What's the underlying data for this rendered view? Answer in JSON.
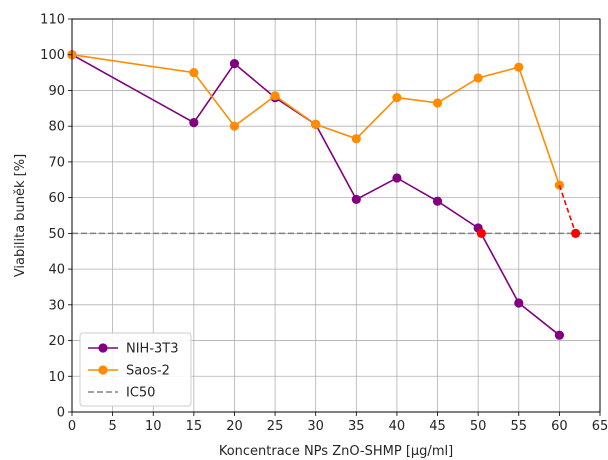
{
  "chart_data": {
    "type": "line",
    "xlabel": "Koncentrace NPs ZnO-SHMP [µg/ml]",
    "ylabel": "Viabilita buněk [%]",
    "xlim": [
      0,
      65
    ],
    "ylim": [
      0,
      110
    ],
    "xticks": [
      0,
      5,
      10,
      15,
      20,
      25,
      30,
      35,
      40,
      45,
      50,
      55,
      60,
      65
    ],
    "yticks": [
      0,
      10,
      20,
      30,
      40,
      50,
      60,
      70,
      80,
      90,
      100,
      110
    ],
    "grid": true,
    "legend_position": "lower-left",
    "series": [
      {
        "name": "NIH-3T3",
        "color": "#800080",
        "marker": "circle",
        "x": [
          0,
          15,
          20,
          25,
          30,
          35,
          40,
          45,
          50,
          55,
          60
        ],
        "y": [
          100,
          81,
          97.5,
          88,
          80.5,
          59.5,
          65.5,
          59,
          51.5,
          30.5,
          21.5
        ]
      },
      {
        "name": "Saos-2",
        "color": "#ff8c00",
        "marker": "circle",
        "x": [
          0,
          15,
          20,
          25,
          30,
          35,
          40,
          45,
          50,
          55,
          60
        ],
        "y": [
          100,
          95,
          80,
          88.5,
          80.5,
          76.5,
          88,
          86.5,
          93.5,
          96.5,
          63.5
        ]
      }
    ],
    "reference_lines": [
      {
        "name": "IC50",
        "y": 50,
        "color": "#808080",
        "style": "dashed"
      }
    ],
    "ic50_points": {
      "color": "#ff0000",
      "points": [
        {
          "x": 50.4,
          "y": 50
        },
        {
          "x": 62,
          "y": 50
        }
      ],
      "extension": {
        "x": [
          60,
          62
        ],
        "y": [
          63.5,
          50
        ],
        "style": "dashed"
      }
    }
  }
}
